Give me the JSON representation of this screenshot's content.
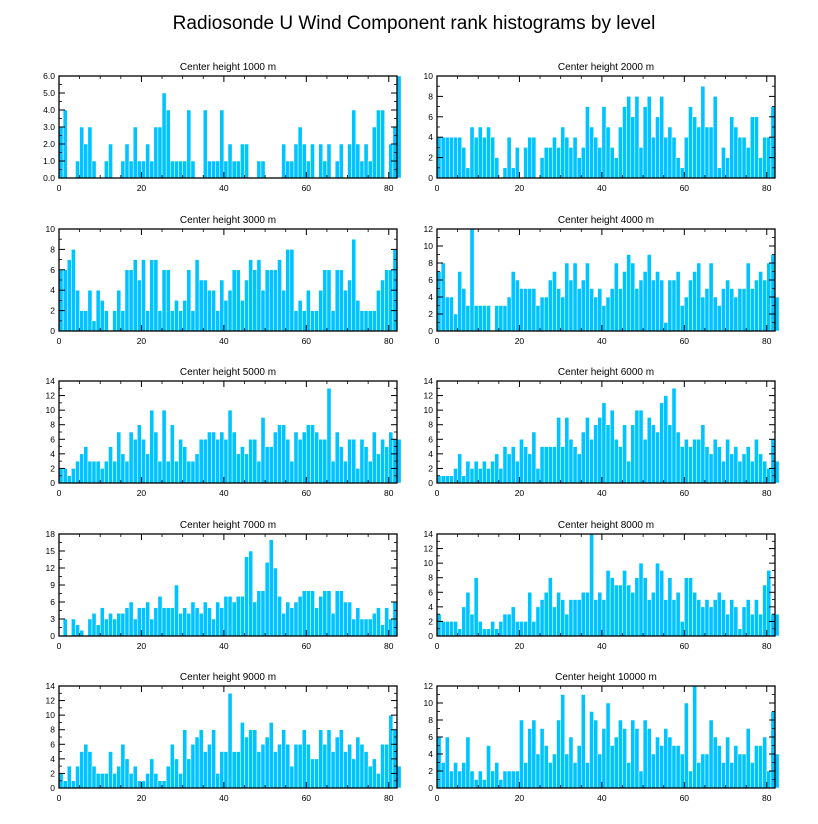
{
  "figure_title": "Radiosonde U Wind Component rank histograms by level",
  "colors": {
    "bar": "#00c4ff",
    "bar_edge": "#ffffff",
    "axis": "#000000",
    "background": "#ffffff"
  },
  "chart_data": [
    {
      "type": "bar",
      "title": "Center height 1000 m",
      "xlim": [
        0,
        82
      ],
      "ylim": [
        0,
        6
      ],
      "xticks": [
        0,
        20,
        40,
        60,
        80
      ],
      "xtick_labels": [
        "0",
        "20",
        "40",
        "60",
        "80"
      ],
      "yticks": [
        0,
        1,
        2,
        3,
        4,
        5,
        6
      ],
      "ytick_labels": [
        "0.0",
        "1.0",
        "2.0",
        "3.0",
        "4.0",
        "5.0",
        "6.0"
      ],
      "values": [
        3,
        4,
        0,
        0,
        1,
        3,
        2,
        3,
        1,
        0,
        0,
        1,
        2,
        0,
        0,
        1,
        2,
        1,
        3,
        1,
        1,
        2,
        1,
        3,
        3,
        5,
        4,
        1,
        1,
        1,
        1,
        4,
        1,
        0,
        0,
        4,
        1,
        1,
        1,
        4,
        1,
        2,
        1,
        1,
        2,
        2,
        0,
        0,
        1,
        1,
        0,
        0,
        0,
        0,
        2,
        1,
        1,
        2,
        3,
        2,
        1,
        2,
        0,
        2,
        1,
        2,
        0,
        1,
        2,
        0,
        2,
        4,
        2,
        1,
        2,
        1,
        3,
        4,
        4,
        0,
        2,
        3,
        6
      ]
    },
    {
      "type": "bar",
      "title": "Center height 2000 m",
      "xlim": [
        0,
        82
      ],
      "ylim": [
        0,
        10
      ],
      "xticks": [
        0,
        20,
        40,
        60,
        80
      ],
      "xtick_labels": [
        "0",
        "20",
        "40",
        "60",
        "80"
      ],
      "yticks": [
        0,
        2,
        4,
        6,
        8,
        10
      ],
      "ytick_labels": [
        "0",
        "2",
        "4",
        "6",
        "8",
        "10"
      ],
      "values": [
        4,
        4,
        4,
        4,
        4,
        4,
        3,
        1,
        5,
        4,
        5,
        4,
        5,
        4,
        2,
        0,
        1,
        4,
        1,
        3,
        0,
        3,
        4,
        4,
        0,
        2,
        3,
        3,
        4,
        3,
        5,
        4,
        3,
        4,
        2,
        3,
        7,
        5,
        4,
        3,
        7,
        5,
        3,
        2,
        5,
        7,
        8,
        6,
        8,
        3,
        7,
        8,
        4,
        6,
        8,
        4,
        5,
        4,
        2,
        1,
        4,
        7,
        6,
        5,
        9,
        5,
        5,
        8,
        1,
        3,
        2,
        6,
        5,
        4,
        4,
        3,
        6,
        6,
        2,
        4,
        4,
        7
      ]
    },
    {
      "type": "bar",
      "title": "Center height 3000 m",
      "xlim": [
        0,
        82
      ],
      "ylim": [
        0,
        10
      ],
      "xticks": [
        0,
        20,
        40,
        60,
        80
      ],
      "xtick_labels": [
        "0",
        "20",
        "40",
        "60",
        "80"
      ],
      "yticks": [
        0,
        2,
        4,
        6,
        8,
        10
      ],
      "ytick_labels": [
        "0",
        "2",
        "4",
        "6",
        "8",
        "10"
      ],
      "values": [
        6,
        6,
        7,
        8,
        4,
        2,
        2,
        4,
        1,
        4,
        3,
        2,
        0,
        2,
        4,
        2,
        6,
        6,
        7,
        5,
        7,
        2,
        7,
        7,
        2,
        6,
        6,
        2,
        3,
        2,
        3,
        6,
        2,
        7,
        5,
        5,
        4,
        4,
        2,
        5,
        3,
        4,
        6,
        6,
        3,
        5,
        7,
        6,
        7,
        4,
        6,
        6,
        6,
        7,
        4,
        8,
        8,
        2,
        3,
        2,
        4,
        2,
        2,
        4,
        6,
        6,
        2,
        6,
        6,
        4,
        5,
        9,
        3,
        2,
        2,
        2,
        2,
        4,
        5,
        6,
        6,
        8
      ]
    },
    {
      "type": "bar",
      "title": "Center height 4000 m",
      "xlim": [
        0,
        82
      ],
      "ylim": [
        0,
        12
      ],
      "xticks": [
        0,
        20,
        40,
        60,
        80
      ],
      "xtick_labels": [
        "0",
        "20",
        "40",
        "60",
        "80"
      ],
      "yticks": [
        0,
        2,
        4,
        6,
        8,
        10,
        12
      ],
      "ytick_labels": [
        "0",
        "2",
        "4",
        "6",
        "8",
        "10",
        "12"
      ],
      "values": [
        7,
        8,
        4,
        4,
        2,
        7,
        5,
        3,
        12,
        3,
        3,
        3,
        3,
        0,
        3,
        3,
        3,
        4,
        7,
        6,
        5,
        5,
        5,
        5,
        3,
        4,
        4,
        6,
        7,
        5,
        4,
        8,
        6,
        8,
        5,
        6,
        8,
        5,
        4,
        5,
        3,
        4,
        5,
        8,
        5,
        7,
        9,
        8,
        5,
        6,
        7,
        9,
        6,
        7,
        6,
        1,
        6,
        6,
        7,
        3,
        4,
        6,
        7,
        8,
        4,
        5,
        8,
        4,
        3,
        5,
        6,
        5,
        4,
        5,
        5,
        8,
        5,
        6,
        7,
        6,
        8,
        9,
        4
      ]
    },
    {
      "type": "bar",
      "title": "Center height 5000 m",
      "xlim": [
        0,
        82
      ],
      "ylim": [
        0,
        14
      ],
      "xticks": [
        0,
        20,
        40,
        60,
        80
      ],
      "xtick_labels": [
        "0",
        "20",
        "40",
        "60",
        "80"
      ],
      "yticks": [
        0,
        2,
        4,
        6,
        8,
        10,
        12,
        14
      ],
      "ytick_labels": [
        "0",
        "2",
        "4",
        "6",
        "8",
        "10",
        "12",
        "14"
      ],
      "values": [
        2,
        2,
        1,
        2,
        3,
        4,
        5,
        3,
        3,
        3,
        2,
        3,
        5,
        3,
        7,
        4,
        3,
        7,
        6,
        8,
        6,
        4,
        10,
        7,
        3,
        10,
        3,
        8,
        3,
        6,
        5,
        3,
        3,
        4,
        6,
        6,
        7,
        7,
        6,
        7,
        6,
        10,
        7,
        4,
        5,
        4,
        6,
        6,
        3,
        9,
        5,
        5,
        7,
        8,
        8,
        6,
        3,
        7,
        6,
        7,
        8,
        8,
        7,
        6,
        6,
        13,
        3,
        7,
        5,
        3,
        6,
        6,
        2,
        6,
        5,
        3,
        7,
        4,
        6,
        5,
        7,
        6,
        6
      ]
    },
    {
      "type": "bar",
      "title": "Center height 6000 m",
      "xlim": [
        0,
        82
      ],
      "ylim": [
        0,
        14
      ],
      "xticks": [
        0,
        20,
        40,
        60,
        80
      ],
      "xtick_labels": [
        "0",
        "20",
        "40",
        "60",
        "80"
      ],
      "yticks": [
        0,
        2,
        4,
        6,
        8,
        10,
        12,
        14
      ],
      "ytick_labels": [
        "0",
        "2",
        "4",
        "6",
        "8",
        "10",
        "12",
        "14"
      ],
      "values": [
        1,
        1,
        1,
        1,
        2,
        4,
        1,
        3,
        2,
        3,
        2,
        3,
        2,
        3,
        4,
        2,
        5,
        4,
        5,
        3,
        6,
        5,
        4,
        7,
        2,
        5,
        5,
        5,
        5,
        9,
        5,
        9,
        6,
        5,
        4,
        7,
        9,
        6,
        8,
        9,
        11,
        8,
        10,
        6,
        5,
        8,
        3,
        8,
        10,
        10,
        6,
        9,
        8,
        7,
        11,
        12,
        8,
        13,
        7,
        5,
        6,
        5,
        6,
        6,
        8,
        5,
        4,
        6,
        5,
        3,
        6,
        4,
        5,
        3,
        4,
        5,
        3,
        6,
        4,
        3,
        2,
        6,
        3
      ]
    },
    {
      "type": "bar",
      "title": "Center height 7000 m",
      "xlim": [
        0,
        82
      ],
      "ylim": [
        0,
        18
      ],
      "xticks": [
        0,
        20,
        40,
        60,
        80
      ],
      "xtick_labels": [
        "0",
        "20",
        "40",
        "60",
        "80"
      ],
      "yticks": [
        0,
        3,
        6,
        9,
        12,
        15,
        18
      ],
      "ytick_labels": [
        "0",
        "3",
        "6",
        "9",
        "12",
        "15",
        "18"
      ],
      "values": [
        0,
        3,
        0,
        3,
        2,
        1,
        0,
        3,
        4,
        2,
        5,
        3,
        4,
        3,
        4,
        4,
        5,
        6,
        3,
        5,
        5,
        6,
        3,
        5,
        7,
        5,
        5,
        5,
        9,
        4,
        5,
        4,
        6,
        5,
        4,
        6,
        5,
        3,
        6,
        5,
        7,
        7,
        6,
        7,
        7,
        14,
        15,
        6,
        8,
        8,
        13,
        17,
        12,
        7,
        4,
        6,
        5,
        6,
        7,
        8,
        8,
        8,
        5,
        7,
        8,
        8,
        4,
        8,
        8,
        6,
        6,
        3,
        5,
        3,
        3,
        3,
        4,
        5,
        2,
        5,
        3,
        6
      ]
    },
    {
      "type": "bar",
      "title": "Center height 8000 m",
      "xlim": [
        0,
        82
      ],
      "ylim": [
        0,
        14
      ],
      "xticks": [
        0,
        20,
        40,
        60,
        80
      ],
      "xtick_labels": [
        "0",
        "20",
        "40",
        "60",
        "80"
      ],
      "yticks": [
        0,
        2,
        4,
        6,
        8,
        10,
        12,
        14
      ],
      "ytick_labels": [
        "0",
        "2",
        "4",
        "6",
        "8",
        "10",
        "12",
        "14"
      ],
      "values": [
        3,
        2,
        2,
        2,
        2,
        1,
        4,
        6,
        3,
        8,
        2,
        1,
        1,
        2,
        1,
        2,
        3,
        3,
        4,
        2,
        2,
        2,
        6,
        2,
        4,
        5,
        6,
        8,
        4,
        6,
        5,
        3,
        5,
        5,
        5,
        6,
        6,
        14,
        5,
        6,
        5,
        9,
        8,
        7,
        7,
        9,
        7,
        6,
        8,
        10,
        8,
        5,
        6,
        10,
        9,
        5,
        8,
        5,
        6,
        2,
        8,
        8,
        6,
        5,
        4,
        5,
        4,
        5,
        6,
        5,
        3,
        5,
        4,
        1,
        4,
        5,
        3,
        5,
        3,
        7,
        9,
        3,
        3
      ]
    },
    {
      "type": "bar",
      "title": "Center height 9000 m",
      "xlim": [
        0,
        82
      ],
      "ylim": [
        0,
        14
      ],
      "xticks": [
        0,
        20,
        40,
        60,
        80
      ],
      "xtick_labels": [
        "0",
        "20",
        "40",
        "60",
        "80"
      ],
      "yticks": [
        0,
        2,
        4,
        6,
        8,
        10,
        12,
        14
      ],
      "ytick_labels": [
        "0",
        "2",
        "4",
        "6",
        "8",
        "10",
        "12",
        "14"
      ],
      "values": [
        2,
        1,
        3,
        1,
        3,
        5,
        6,
        5,
        3,
        2,
        2,
        2,
        5,
        2,
        3,
        6,
        4,
        2,
        3,
        1,
        1,
        2,
        4,
        2,
        1,
        1,
        3,
        6,
        4,
        2,
        8,
        4,
        6,
        7,
        8,
        5,
        6,
        8,
        2,
        5,
        5,
        13,
        5,
        5,
        9,
        7,
        8,
        8,
        5,
        6,
        7,
        9,
        5,
        6,
        8,
        6,
        3,
        6,
        6,
        8,
        6,
        4,
        4,
        8,
        6,
        8,
        5,
        7,
        8,
        5,
        6,
        4,
        7,
        6,
        5,
        3,
        4,
        2,
        6,
        6,
        10,
        8,
        3
      ]
    },
    {
      "type": "bar",
      "title": "Center height 10000 m",
      "xlim": [
        0,
        82
      ],
      "ylim": [
        0,
        12
      ],
      "xticks": [
        0,
        20,
        40,
        60,
        80
      ],
      "xtick_labels": [
        "0",
        "20",
        "40",
        "60",
        "80"
      ],
      "yticks": [
        0,
        2,
        4,
        6,
        8,
        10,
        12
      ],
      "ytick_labels": [
        "0",
        "2",
        "4",
        "6",
        "8",
        "10",
        "12"
      ],
      "values": [
        6,
        3,
        6,
        2,
        3,
        2,
        3,
        6,
        2,
        1,
        2,
        1,
        5,
        2,
        3,
        1,
        2,
        2,
        2,
        2,
        8,
        3,
        7,
        8,
        4,
        7,
        5,
        3,
        4,
        8,
        11,
        4,
        6,
        3,
        5,
        11,
        3,
        9,
        8,
        4,
        7,
        10,
        5,
        6,
        8,
        7,
        3,
        8,
        7,
        2,
        8,
        7,
        4,
        6,
        5,
        7,
        6,
        5,
        5,
        4,
        10,
        2,
        12,
        3,
        4,
        4,
        8,
        6,
        5,
        3,
        6,
        3,
        5,
        4,
        4,
        7,
        3,
        5,
        5,
        6,
        2,
        9,
        4
      ]
    }
  ]
}
